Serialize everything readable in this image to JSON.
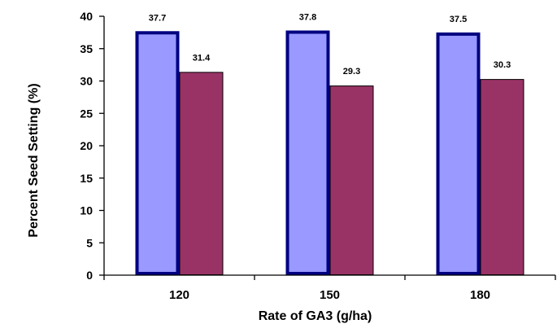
{
  "chart_data": {
    "type": "bar",
    "title": "",
    "xlabel": "Rate of GA3 (g/ha)",
    "ylabel": "Percent Seed Setting (%)",
    "categories": [
      "120",
      "150",
      "180"
    ],
    "ylim": [
      0,
      40
    ],
    "yticks": [
      0,
      5,
      10,
      15,
      20,
      25,
      30,
      35,
      40
    ],
    "grid": false,
    "legend": "none",
    "series": [
      {
        "values": [
          37.7,
          37.8,
          37.5
        ],
        "data_labels": [
          "37.7",
          "37.8",
          "37.5"
        ],
        "fill_color": "#9999ff",
        "border_color": "#000080"
      },
      {
        "values": [
          31.4,
          29.3,
          30.3
        ],
        "data_labels": [
          "31.4",
          "29.3",
          "30.3"
        ],
        "fill_color": "#993366",
        "border_color": "#000000"
      }
    ]
  }
}
